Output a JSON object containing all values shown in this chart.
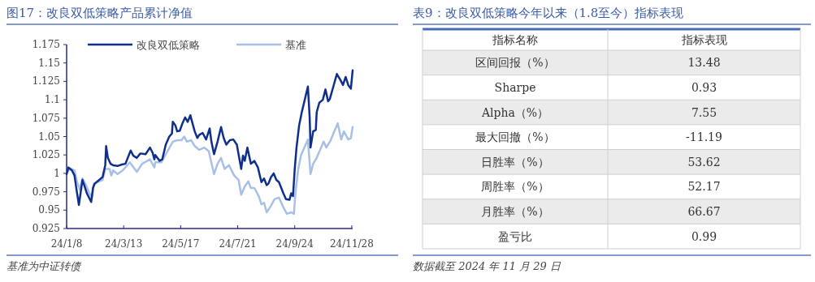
{
  "chart_data": [
    {
      "type": "line",
      "title": "图17：改良双低策略产品累计净值",
      "xlim": [
        "2024-01-08",
        "2024-11-29"
      ],
      "ylim": [
        0.925,
        1.175
      ],
      "yticks": [
        0.925,
        0.95,
        0.975,
        1,
        1.025,
        1.05,
        1.075,
        1.1,
        1.125,
        1.15,
        1.175
      ],
      "xticks": [
        {
          "value": "2024-01-08",
          "label": "24/1/8"
        },
        {
          "value": "2024-03-13",
          "label": "24/3/13"
        },
        {
          "value": "2024-05-17",
          "label": "24/5/17"
        },
        {
          "value": "2024-07-21",
          "label": "24/7/21"
        },
        {
          "value": "2024-09-24",
          "label": "24/9/24"
        },
        {
          "value": "2024-11-28",
          "label": "24/11/28"
        }
      ],
      "legend": "top",
      "series": [
        {
          "name": "改良双低策略",
          "color": "#0f2f8c",
          "x": [
            "2024-01-08",
            "2024-01-10",
            "2024-01-14",
            "2024-01-17",
            "2024-01-19",
            "2024-01-22",
            "2024-01-26",
            "2024-01-28",
            "2024-01-31",
            "2024-02-05",
            "2024-02-07",
            "2024-02-09",
            "2024-02-18",
            "2024-02-21",
            "2024-02-22",
            "2024-02-24",
            "2024-02-27",
            "2024-03-01",
            "2024-03-06",
            "2024-03-11",
            "2024-03-15",
            "2024-03-21",
            "2024-03-24",
            "2024-03-28",
            "2024-04-01",
            "2024-04-07",
            "2024-04-12",
            "2024-04-15",
            "2024-04-17",
            "2024-04-18",
            "2024-04-23",
            "2024-04-26",
            "2024-04-30",
            "2024-05-04",
            "2024-05-07",
            "2024-05-08",
            "2024-05-11",
            "2024-05-13",
            "2024-05-16",
            "2024-05-19",
            "2024-05-22",
            "2024-05-25",
            "2024-05-28",
            "2024-05-30",
            "2024-06-02",
            "2024-06-05",
            "2024-06-07",
            "2024-06-11",
            "2024-06-15",
            "2024-06-19",
            "2024-06-21",
            "2024-06-24",
            "2024-06-28",
            "2024-07-02",
            "2024-07-05",
            "2024-07-08",
            "2024-07-12",
            "2024-07-16",
            "2024-07-20",
            "2024-07-25",
            "2024-07-27",
            "2024-07-29",
            "2024-08-01",
            "2024-08-05",
            "2024-08-09",
            "2024-08-13",
            "2024-08-17",
            "2024-08-20",
            "2024-08-23",
            "2024-08-25",
            "2024-08-28",
            "2024-08-31",
            "2024-09-03",
            "2024-09-06",
            "2024-09-11",
            "2024-09-14",
            "2024-09-18",
            "2024-09-20",
            "2024-09-22",
            "2024-09-24",
            "2024-09-26",
            "2024-09-29",
            "2024-10-02",
            "2024-10-05",
            "2024-10-09",
            "2024-10-11",
            "2024-10-12",
            "2024-10-15",
            "2024-10-18",
            "2024-10-19",
            "2024-10-22",
            "2024-10-26",
            "2024-10-29",
            "2024-11-01",
            "2024-11-03",
            "2024-11-07",
            "2024-11-11",
            "2024-11-15",
            "2024-11-18",
            "2024-11-21",
            "2024-11-24",
            "2024-11-27",
            "2024-11-29"
          ],
          "values": [
            0.999,
            1.008,
            1.004,
            0.997,
            0.98,
            0.957,
            0.991,
            0.984,
            0.973,
            0.961,
            0.98,
            0.986,
            0.995,
            1.011,
            1.037,
            1.021,
            1.013,
            1.011,
            1.01,
            1.012,
            1.013,
            1.031,
            1.024,
            1.021,
            1.027,
            1.026,
            1.035,
            1.028,
            1.019,
            1.025,
            1.017,
            1.019,
            1.039,
            1.05,
            1.054,
            1.07,
            1.065,
            1.057,
            1.058,
            1.068,
            1.076,
            1.07,
            1.079,
            1.07,
            1.057,
            1.048,
            1.052,
            1.055,
            1.046,
            1.061,
            1.043,
            1.026,
            1.043,
            1.063,
            1.048,
            1.039,
            1.045,
            1.046,
            1.039,
            1.006,
            1.024,
            1.017,
            1.035,
            1.013,
            1.017,
            1.008,
            0.988,
            0.993,
            0.984,
            0.986,
            0.995,
            1.0,
            0.991,
            0.988,
            0.973,
            0.965,
            0.964,
            0.973,
            0.969,
            1.006,
            1.035,
            1.065,
            1.083,
            1.098,
            1.118,
            1.076,
            1.035,
            1.057,
            1.059,
            1.083,
            1.096,
            1.1,
            1.114,
            1.098,
            1.101,
            1.118,
            1.135,
            1.127,
            1.12,
            1.131,
            1.12,
            1.115,
            1.14
          ]
        },
        {
          "name": "基准",
          "color": "#a8bfe8",
          "x": [
            "2024-01-08",
            "2024-01-12",
            "2024-01-17",
            "2024-01-20",
            "2024-01-23",
            "2024-01-26",
            "2024-01-30",
            "2024-02-03",
            "2024-02-06",
            "2024-02-08",
            "2024-02-18",
            "2024-02-21",
            "2024-02-26",
            "2024-02-28",
            "2024-03-01",
            "2024-03-06",
            "2024-03-12",
            "2024-03-20",
            "2024-03-28",
            "2024-04-03",
            "2024-04-12",
            "2024-04-17",
            "2024-04-18",
            "2024-04-25",
            "2024-05-01",
            "2024-05-08",
            "2024-05-13",
            "2024-05-18",
            "2024-05-21",
            "2024-05-24",
            "2024-05-29",
            "2024-06-02",
            "2024-06-07",
            "2024-06-13",
            "2024-06-18",
            "2024-06-24",
            "2024-06-28",
            "2024-07-02",
            "2024-07-06",
            "2024-07-11",
            "2024-07-17",
            "2024-07-22",
            "2024-07-25",
            "2024-07-29",
            "2024-08-02",
            "2024-08-05",
            "2024-08-09",
            "2024-08-14",
            "2024-08-17",
            "2024-08-20",
            "2024-08-23",
            "2024-08-28",
            "2024-09-01",
            "2024-09-06",
            "2024-09-11",
            "2024-09-15",
            "2024-09-20",
            "2024-09-23",
            "2024-09-25",
            "2024-09-28",
            "2024-10-01",
            "2024-10-05",
            "2024-10-09",
            "2024-10-12",
            "2024-10-15",
            "2024-10-19",
            "2024-10-24",
            "2024-10-27",
            "2024-10-30",
            "2024-11-04",
            "2024-11-08",
            "2024-11-12",
            "2024-11-16",
            "2024-11-19",
            "2024-11-24",
            "2024-11-27",
            "2024-11-29"
          ],
          "values": [
            1.0,
            1.007,
            1.004,
            0.988,
            0.978,
            0.993,
            0.984,
            0.973,
            0.967,
            0.986,
            0.991,
            1.006,
            1.006,
            0.997,
            1.004,
            0.999,
            1.004,
            1.015,
            1.002,
            1.013,
            1.019,
            1.008,
            1.015,
            1.015,
            1.028,
            1.043,
            1.045,
            1.045,
            1.05,
            1.043,
            1.045,
            1.037,
            1.032,
            1.035,
            1.03,
            0.999,
            1.013,
            1.021,
            1.006,
            1.011,
            0.997,
            0.991,
            0.971,
            0.982,
            0.989,
            0.98,
            0.98,
            0.969,
            0.958,
            0.96,
            0.947,
            0.956,
            0.965,
            0.967,
            0.954,
            0.945,
            0.947,
            0.945,
            0.976,
            1.006,
            1.024,
            1.035,
            1.046,
            0.999,
            1.013,
            1.021,
            1.035,
            1.043,
            1.035,
            1.045,
            1.057,
            1.068,
            1.046,
            1.057,
            1.046,
            1.048,
            1.063
          ]
        }
      ],
      "annotations": [
        "基准为中证转债"
      ]
    },
    {
      "type": "other",
      "title": "表9：改良双低策略今年以来（1.8至今）指标表现",
      "xlabel": "指标名称",
      "ylabel": "指标表现",
      "categories": [
        "区间回报（%）",
        "Sharpe",
        "Alpha（%）",
        "最大回撤（%）",
        "日胜率（%）",
        "周胜率（%）",
        "月胜率（%）",
        "盈亏比"
      ],
      "values": [
        13.48,
        0.93,
        7.55,
        -11.19,
        53.62,
        52.17,
        66.67,
        0.99
      ],
      "data_labels": true,
      "annotations": [
        "数据截至 2024 年 11 月 29 日"
      ]
    }
  ]
}
